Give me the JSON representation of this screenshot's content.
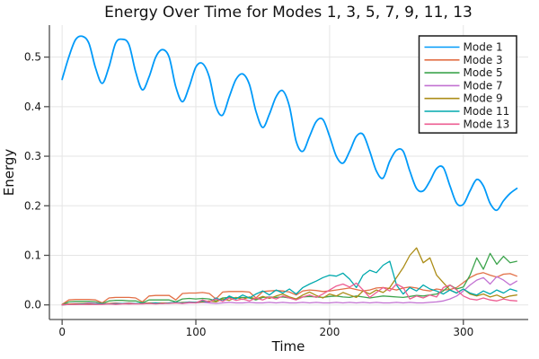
{
  "figure": {
    "background": "#ffffff"
  },
  "chart_data": {
    "type": "line",
    "title": "Energy Over Time for Modes 1, 3, 5, 7, 9, 11, 13",
    "xlabel": "Time",
    "ylabel": "Energy",
    "grid": true,
    "legend_position": "top-right",
    "xlim": [
      -9.5,
      348.5
    ],
    "ylim": [
      -0.0295,
      0.5645
    ],
    "x_ticks": [
      0,
      100,
      200,
      300
    ],
    "x_tick_labels": [
      "0",
      "100",
      "200",
      "300"
    ],
    "y_ticks": [
      0.0,
      0.1,
      0.2,
      0.3,
      0.4,
      0.5
    ],
    "y_tick_labels": [
      "0.0",
      "0.1",
      "0.2",
      "0.3",
      "0.4",
      "0.5"
    ],
    "x": [
      0,
      5,
      10,
      15,
      20,
      25,
      30,
      35,
      40,
      45,
      50,
      55,
      60,
      65,
      70,
      75,
      80,
      85,
      90,
      95,
      100,
      105,
      110,
      115,
      120,
      125,
      130,
      135,
      140,
      145,
      150,
      155,
      160,
      165,
      170,
      175,
      180,
      185,
      190,
      195,
      200,
      205,
      210,
      215,
      220,
      225,
      230,
      235,
      240,
      245,
      250,
      255,
      260,
      265,
      270,
      275,
      280,
      285,
      290,
      295,
      300,
      305,
      310,
      315,
      320,
      325,
      330,
      335,
      340
    ],
    "series": [
      {
        "name": "Mode 1",
        "color": "#009AF9",
        "smooth": true,
        "values": [
          0.455,
          0.5,
          0.535,
          0.542,
          0.528,
          0.478,
          0.447,
          0.48,
          0.528,
          0.536,
          0.525,
          0.47,
          0.434,
          0.46,
          0.5,
          0.515,
          0.5,
          0.44,
          0.41,
          0.44,
          0.48,
          0.487,
          0.46,
          0.4,
          0.383,
          0.42,
          0.455,
          0.466,
          0.445,
          0.39,
          0.358,
          0.385,
          0.42,
          0.432,
          0.4,
          0.33,
          0.31,
          0.34,
          0.37,
          0.374,
          0.34,
          0.3,
          0.286,
          0.31,
          0.34,
          0.344,
          0.31,
          0.27,
          0.256,
          0.29,
          0.312,
          0.31,
          0.27,
          0.235,
          0.23,
          0.25,
          0.275,
          0.277,
          0.24,
          0.205,
          0.203,
          0.23,
          0.253,
          0.24,
          0.205,
          0.191,
          0.21,
          0.225,
          0.235
        ]
      },
      {
        "name": "Mode 3",
        "color": "#E26F46",
        "smooth": false,
        "values": [
          0.001,
          0.01,
          0.011,
          0.011,
          0.011,
          0.01,
          0.004,
          0.014,
          0.015,
          0.015,
          0.015,
          0.014,
          0.006,
          0.018,
          0.019,
          0.019,
          0.019,
          0.01,
          0.023,
          0.024,
          0.024,
          0.025,
          0.023,
          0.012,
          0.026,
          0.027,
          0.027,
          0.027,
          0.026,
          0.014,
          0.027,
          0.028,
          0.029,
          0.028,
          0.026,
          0.02,
          0.028,
          0.03,
          0.029,
          0.027,
          0.028,
          0.03,
          0.032,
          0.034,
          0.031,
          0.028,
          0.03,
          0.034,
          0.035,
          0.033,
          0.03,
          0.034,
          0.036,
          0.034,
          0.03,
          0.028,
          0.032,
          0.03,
          0.031,
          0.035,
          0.045,
          0.055,
          0.062,
          0.065,
          0.06,
          0.056,
          0.062,
          0.063,
          0.058
        ]
      },
      {
        "name": "Mode 5",
        "color": "#3DA44D",
        "smooth": false,
        "values": [
          0.0,
          0.006,
          0.007,
          0.007,
          0.007,
          0.006,
          0.003,
          0.008,
          0.009,
          0.009,
          0.008,
          0.008,
          0.004,
          0.01,
          0.01,
          0.01,
          0.01,
          0.006,
          0.012,
          0.013,
          0.012,
          0.013,
          0.012,
          0.008,
          0.014,
          0.015,
          0.014,
          0.015,
          0.014,
          0.01,
          0.015,
          0.016,
          0.015,
          0.016,
          0.014,
          0.012,
          0.016,
          0.017,
          0.016,
          0.015,
          0.017,
          0.018,
          0.016,
          0.015,
          0.018,
          0.016,
          0.014,
          0.016,
          0.018,
          0.017,
          0.016,
          0.015,
          0.017,
          0.019,
          0.018,
          0.02,
          0.022,
          0.028,
          0.04,
          0.032,
          0.036,
          0.06,
          0.095,
          0.072,
          0.104,
          0.082,
          0.098,
          0.085,
          0.088
        ]
      },
      {
        "name": "Mode 7",
        "color": "#C271D2",
        "smooth": false,
        "values": [
          0.0,
          0.002,
          0.003,
          0.003,
          0.004,
          0.003,
          0.002,
          0.003,
          0.004,
          0.003,
          0.004,
          0.003,
          0.003,
          0.004,
          0.004,
          0.003,
          0.004,
          0.004,
          0.003,
          0.004,
          0.004,
          0.005,
          0.004,
          0.003,
          0.004,
          0.005,
          0.004,
          0.004,
          0.005,
          0.004,
          0.004,
          0.005,
          0.004,
          0.005,
          0.004,
          0.004,
          0.005,
          0.004,
          0.005,
          0.004,
          0.004,
          0.005,
          0.004,
          0.005,
          0.004,
          0.005,
          0.004,
          0.005,
          0.004,
          0.004,
          0.005,
          0.004,
          0.005,
          0.004,
          0.004,
          0.005,
          0.006,
          0.008,
          0.012,
          0.018,
          0.028,
          0.04,
          0.05,
          0.055,
          0.042,
          0.057,
          0.05,
          0.04,
          0.048
        ]
      },
      {
        "name": "Mode 9",
        "color": "#AC8D18",
        "smooth": false,
        "values": [
          0.0,
          0.002,
          0.002,
          0.003,
          0.002,
          0.002,
          0.002,
          0.003,
          0.003,
          0.003,
          0.003,
          0.003,
          0.003,
          0.004,
          0.004,
          0.004,
          0.004,
          0.004,
          0.005,
          0.005,
          0.005,
          0.006,
          0.008,
          0.006,
          0.012,
          0.009,
          0.015,
          0.011,
          0.016,
          0.012,
          0.017,
          0.013,
          0.018,
          0.022,
          0.016,
          0.012,
          0.02,
          0.026,
          0.019,
          0.014,
          0.022,
          0.018,
          0.025,
          0.02,
          0.015,
          0.028,
          0.022,
          0.03,
          0.025,
          0.035,
          0.055,
          0.075,
          0.1,
          0.115,
          0.085,
          0.095,
          0.06,
          0.045,
          0.03,
          0.024,
          0.032,
          0.022,
          0.018,
          0.022,
          0.016,
          0.02,
          0.014,
          0.018,
          0.02
        ]
      },
      {
        "name": "Mode 11",
        "color": "#00A9AD",
        "smooth": false,
        "values": [
          0.0,
          0.001,
          0.001,
          0.002,
          0.001,
          0.002,
          0.002,
          0.002,
          0.002,
          0.003,
          0.002,
          0.003,
          0.003,
          0.003,
          0.004,
          0.003,
          0.004,
          0.005,
          0.004,
          0.006,
          0.005,
          0.008,
          0.006,
          0.014,
          0.008,
          0.018,
          0.012,
          0.02,
          0.014,
          0.022,
          0.028,
          0.02,
          0.03,
          0.024,
          0.032,
          0.022,
          0.035,
          0.042,
          0.048,
          0.055,
          0.06,
          0.058,
          0.064,
          0.052,
          0.035,
          0.06,
          0.07,
          0.065,
          0.08,
          0.088,
          0.04,
          0.022,
          0.035,
          0.028,
          0.04,
          0.032,
          0.028,
          0.022,
          0.03,
          0.024,
          0.032,
          0.024,
          0.02,
          0.028,
          0.022,
          0.03,
          0.024,
          0.032,
          0.028
        ]
      },
      {
        "name": "Mode 13",
        "color": "#ED5D92",
        "smooth": false,
        "values": [
          0.0,
          0.001,
          0.001,
          0.001,
          0.001,
          0.001,
          0.001,
          0.002,
          0.001,
          0.002,
          0.002,
          0.002,
          0.002,
          0.003,
          0.002,
          0.003,
          0.003,
          0.004,
          0.003,
          0.005,
          0.004,
          0.01,
          0.006,
          0.012,
          0.007,
          0.014,
          0.009,
          0.012,
          0.008,
          0.014,
          0.01,
          0.016,
          0.012,
          0.018,
          0.014,
          0.01,
          0.016,
          0.02,
          0.015,
          0.022,
          0.03,
          0.038,
          0.042,
          0.036,
          0.044,
          0.03,
          0.015,
          0.025,
          0.035,
          0.028,
          0.042,
          0.035,
          0.012,
          0.018,
          0.014,
          0.02,
          0.016,
          0.035,
          0.04,
          0.03,
          0.018,
          0.012,
          0.01,
          0.014,
          0.01,
          0.008,
          0.012,
          0.009,
          0.008
        ]
      }
    ],
    "legend": {
      "background": "#ffffff",
      "border": "#1a1a1a"
    },
    "colors": {
      "grid": "#e5e5e5",
      "spine": "#4d4d4d",
      "text": "#111111"
    }
  }
}
